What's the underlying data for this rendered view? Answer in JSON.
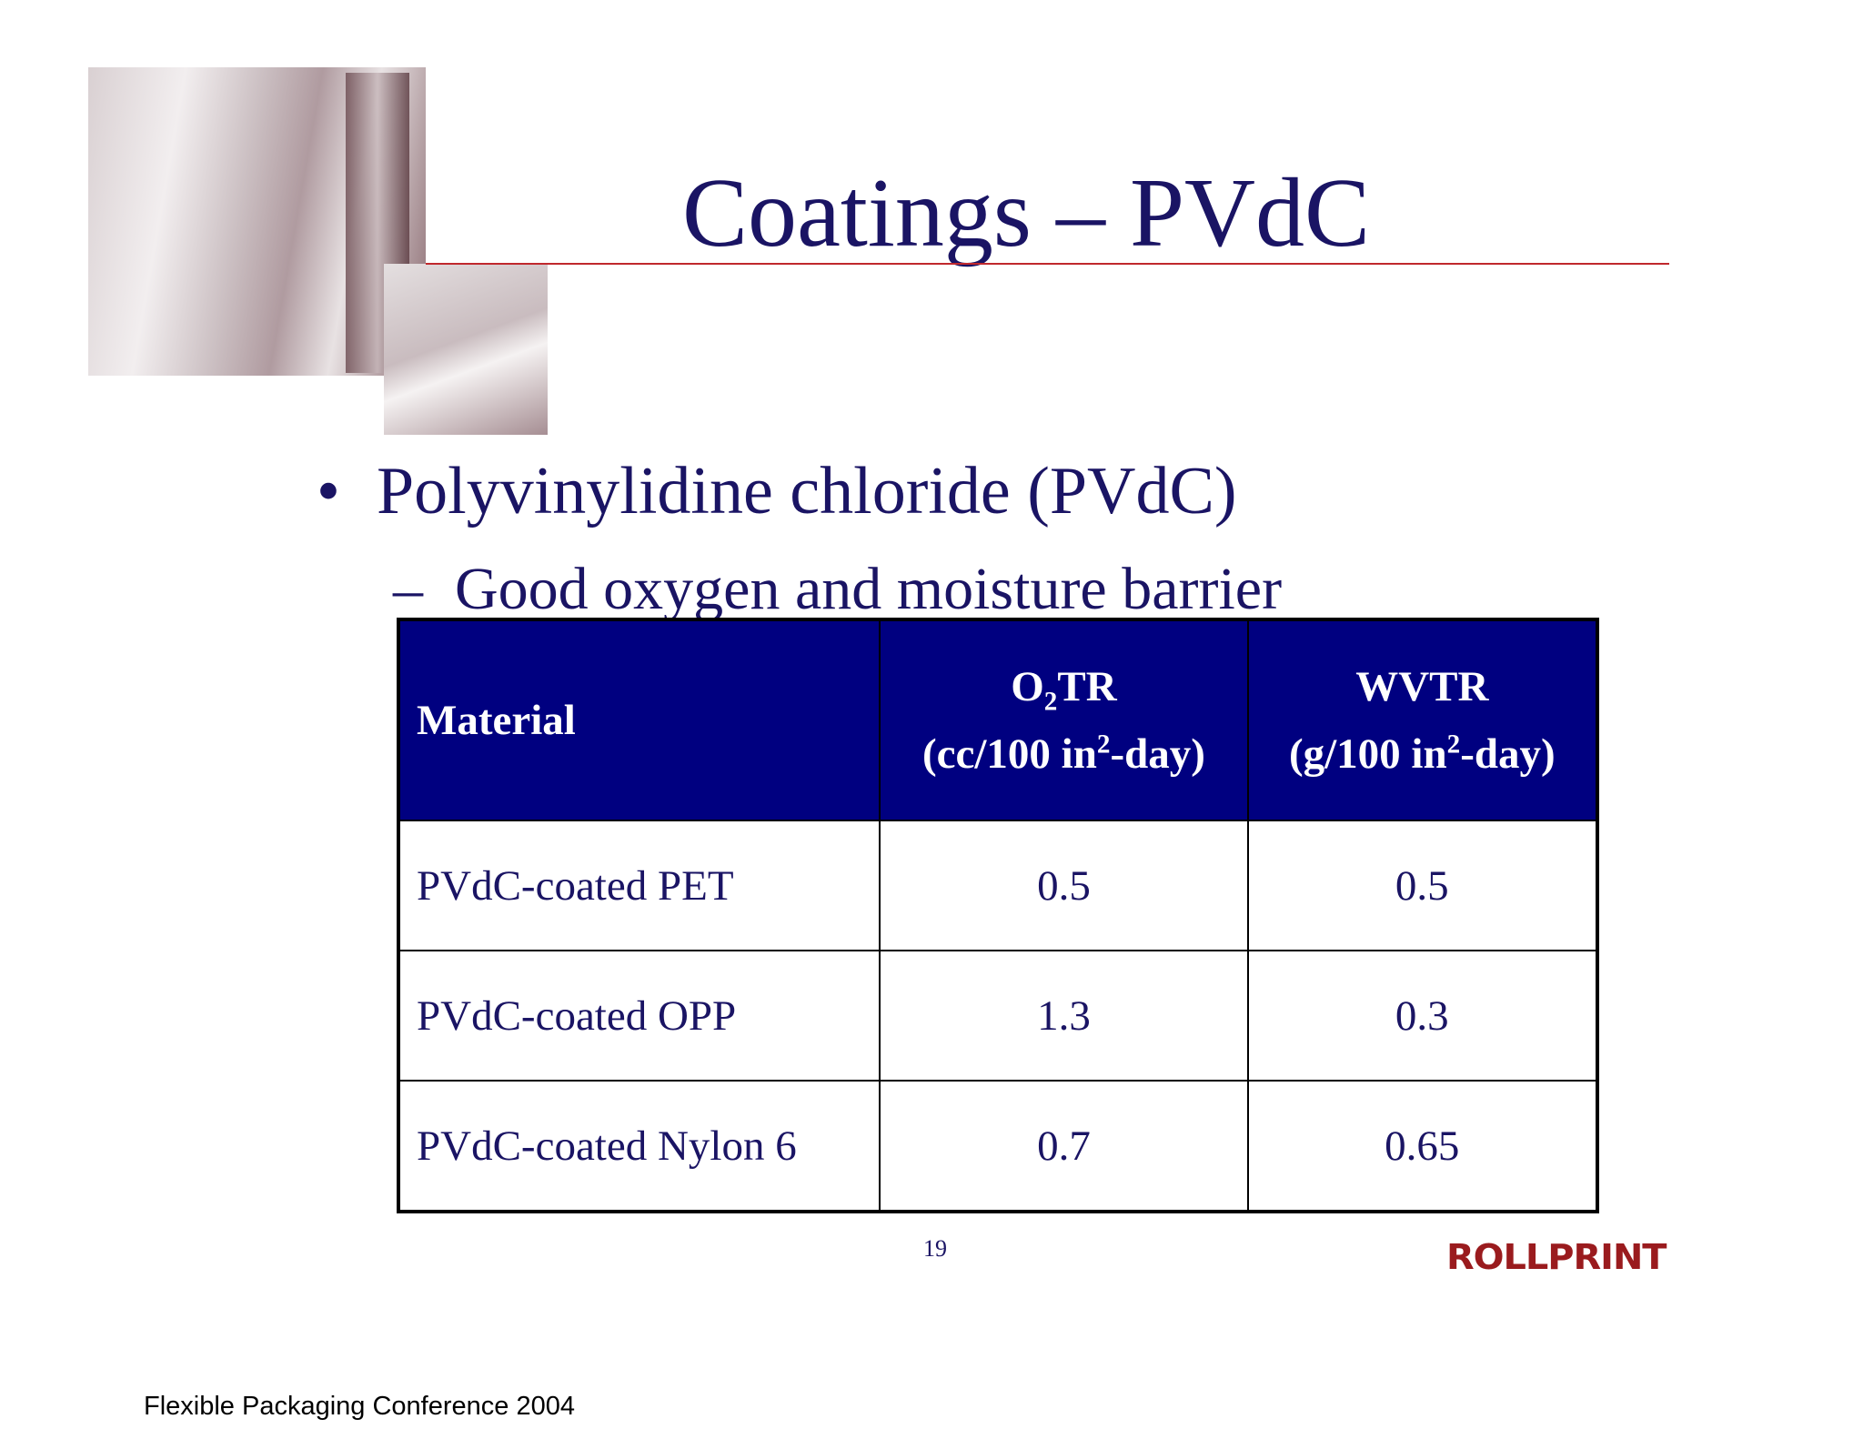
{
  "title": "Coatings – PVdC",
  "bullet": {
    "marker": "•",
    "text": "Polyvinylidine chloride (PVdC)"
  },
  "sub_bullet": {
    "marker": "–",
    "text": "Good oxygen and moisture barrier"
  },
  "table": {
    "header": [
      {
        "text": "Material"
      },
      {
        "line1": [
          "O",
          "2",
          "TR"
        ],
        "line2": [
          "(cc/100 in",
          "2",
          "-day)"
        ]
      },
      {
        "line1": [
          "WVTR"
        ],
        "line2": [
          "(g/100 in",
          "2",
          "-day)"
        ]
      }
    ],
    "rows": [
      [
        "PVdC-coated PET",
        "0.5",
        "0.5"
      ],
      [
        "PVdC-coated OPP",
        "1.3",
        "0.3"
      ],
      [
        "PVdC-coated Nylon 6",
        "0.7",
        "0.65"
      ]
    ]
  },
  "page_number": "19",
  "logo": "ROLLPRINT",
  "footer": "Flexible Packaging Conference 2004"
}
